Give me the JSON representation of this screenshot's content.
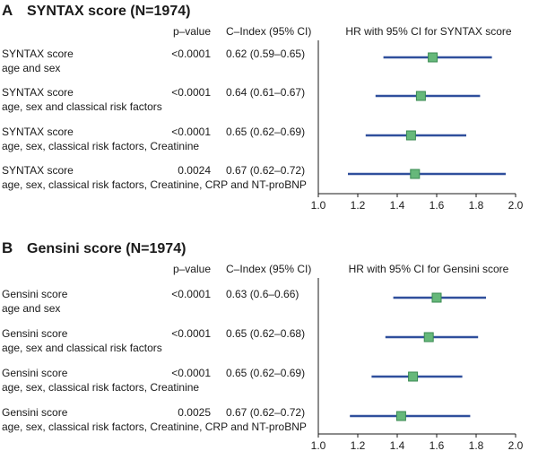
{
  "chart_data": [
    {
      "type": "forest",
      "panel": "A",
      "title": "SYNTAX score (N=1974)",
      "columns": {
        "p": "p–value",
        "c": "C–Index (95% CI)",
        "plot": "HR with 95% CI for SYNTAX score"
      },
      "xlim": [
        1.0,
        2.0
      ],
      "xticks": [
        "1.0",
        "1.2",
        "1.4",
        "1.6",
        "1.8",
        "2.0"
      ],
      "rows": [
        {
          "label1": "SYNTAX score",
          "label2": "age and sex",
          "p": "<0.0001",
          "cindex": "0.62 (0.59–0.65)",
          "hr": 1.58,
          "lo": 1.33,
          "hi": 1.88
        },
        {
          "label1": "SYNTAX score",
          "label2": "age, sex and classical risk factors",
          "p": "<0.0001",
          "cindex": "0.64 (0.61–0.67)",
          "hr": 1.52,
          "lo": 1.29,
          "hi": 1.82
        },
        {
          "label1": "SYNTAX score",
          "label2": "age, sex, classical risk factors, Creatinine",
          "p": "<0.0001",
          "cindex": "0.65 (0.62–0.69)",
          "hr": 1.47,
          "lo": 1.24,
          "hi": 1.75
        },
        {
          "label1": "SYNTAX score",
          "label2": "age, sex, classical risk factors, Creatinine, CRP and NT-proBNP",
          "p": "0.0024",
          "cindex": "0.67 (0.62–0.72)",
          "hr": 1.49,
          "lo": 1.15,
          "hi": 1.95
        }
      ]
    },
    {
      "type": "forest",
      "panel": "B",
      "title": "Gensini score (N=1974)",
      "columns": {
        "p": "p–value",
        "c": "C–Index (95% CI)",
        "plot": "HR with 95% CI for Gensini score"
      },
      "xlim": [
        1.0,
        2.0
      ],
      "xticks": [
        "1.0",
        "1.2",
        "1.4",
        "1.6",
        "1.8",
        "2.0"
      ],
      "rows": [
        {
          "label1": "Gensini score",
          "label2": "age and sex",
          "p": "<0.0001",
          "cindex": "0.63 (0.6–0.66)",
          "hr": 1.6,
          "lo": 1.38,
          "hi": 1.85
        },
        {
          "label1": "Gensini score",
          "label2": "age, sex and classical risk factors",
          "p": "<0.0001",
          "cindex": "0.65 (0.62–0.68)",
          "hr": 1.56,
          "lo": 1.34,
          "hi": 1.81
        },
        {
          "label1": "Gensini score",
          "label2": "age, sex, classical risk factors, Creatinine",
          "p": "<0.0001",
          "cindex": "0.65 (0.62–0.69)",
          "hr": 1.48,
          "lo": 1.27,
          "hi": 1.73
        },
        {
          "label1": "Gensini score",
          "label2": "age, sex, classical risk factors, Creatinine, CRP and NT-proBNP",
          "p": "0.0025",
          "cindex": "0.67 (0.62–0.72)",
          "hr": 1.42,
          "lo": 1.16,
          "hi": 1.77
        }
      ]
    }
  ],
  "colors": {
    "ci_line": "#2f4f9c",
    "point_fill": "#66b87a",
    "point_stroke": "#3a8a52",
    "axis": "#1a1a1a"
  }
}
